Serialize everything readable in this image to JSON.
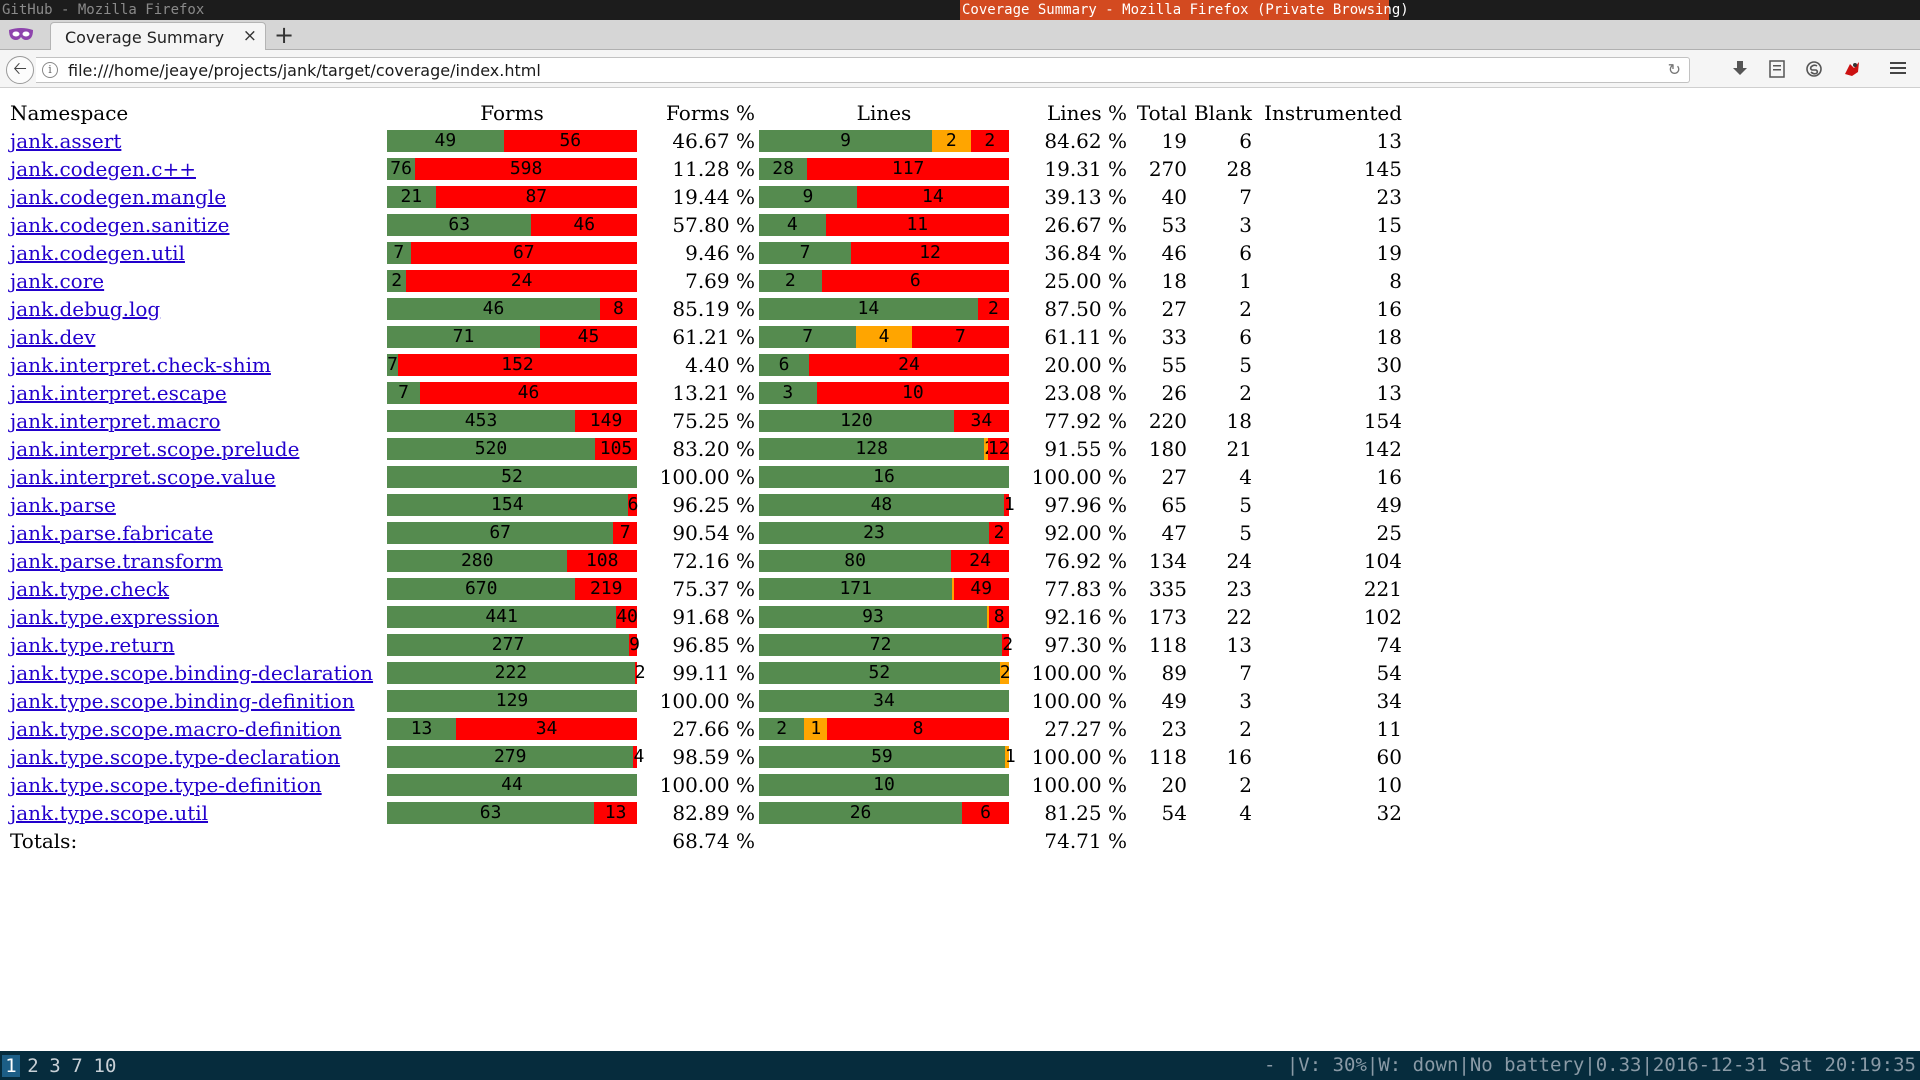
{
  "window": {
    "inactive_title": "GitHub - Mozilla Firefox",
    "active_title": "Coverage Summary - Mozilla Firefox (Private Browsing)"
  },
  "tab": {
    "title": "Coverage Summary",
    "close": "×",
    "new_tab": "+"
  },
  "nav": {
    "url": "file:///home/jeaye/projects/jank/target/coverage/index.html"
  },
  "icons": {
    "private_browsing": "mask-icon",
    "back": "back-arrow-icon",
    "info": "info-icon",
    "reload": "reload-icon",
    "download": "download-icon",
    "reader": "reader-icon",
    "sync": "sync-icon",
    "extension": "extension-icon",
    "menu": "hamburger-menu-icon"
  },
  "colors": {
    "covered": "#558b4f",
    "partial": "#ffa500",
    "uncovered": "#ff0000",
    "link": "#2200cc"
  },
  "table": {
    "headers": {
      "namespace": "Namespace",
      "forms": "Forms",
      "forms_pct": "Forms %",
      "lines": "Lines",
      "lines_pct": "Lines %",
      "total": "Total",
      "blank": "Blank",
      "instrumented": "Instrumented"
    },
    "rows": [
      {
        "ns": "jank.assert",
        "forms": [
          49,
          56
        ],
        "forms_pct": "46.67 %",
        "lines": [
          9,
          2,
          2
        ],
        "lines_pct": "84.62 %",
        "total": "19",
        "blank": "6",
        "instrumented": "13"
      },
      {
        "ns": "jank.codegen.c++",
        "forms": [
          76,
          598
        ],
        "forms_pct": "11.28 %",
        "lines": [
          28,
          0,
          117
        ],
        "lines_pct": "19.31 %",
        "total": "270",
        "blank": "28",
        "instrumented": "145"
      },
      {
        "ns": "jank.codegen.mangle",
        "forms": [
          21,
          87
        ],
        "forms_pct": "19.44 %",
        "lines": [
          9,
          0,
          14
        ],
        "lines_pct": "39.13 %",
        "total": "40",
        "blank": "7",
        "instrumented": "23"
      },
      {
        "ns": "jank.codegen.sanitize",
        "forms": [
          63,
          46
        ],
        "forms_pct": "57.80 %",
        "lines": [
          4,
          0,
          11
        ],
        "lines_pct": "26.67 %",
        "total": "53",
        "blank": "3",
        "instrumented": "15"
      },
      {
        "ns": "jank.codegen.util",
        "forms": [
          7,
          67
        ],
        "forms_pct": "9.46 %",
        "lines": [
          7,
          0,
          12
        ],
        "lines_pct": "36.84 %",
        "total": "46",
        "blank": "6",
        "instrumented": "19"
      },
      {
        "ns": "jank.core",
        "forms": [
          2,
          24
        ],
        "forms_pct": "7.69 %",
        "lines": [
          2,
          0,
          6
        ],
        "lines_pct": "25.00 %",
        "total": "18",
        "blank": "1",
        "instrumented": "8"
      },
      {
        "ns": "jank.debug.log",
        "forms": [
          46,
          8
        ],
        "forms_pct": "85.19 %",
        "lines": [
          14,
          0,
          2
        ],
        "lines_pct": "87.50 %",
        "total": "27",
        "blank": "2",
        "instrumented": "16"
      },
      {
        "ns": "jank.dev",
        "forms": [
          71,
          45
        ],
        "forms_pct": "61.21 %",
        "lines": [
          7,
          4,
          7
        ],
        "lines_pct": "61.11 %",
        "total": "33",
        "blank": "6",
        "instrumented": "18"
      },
      {
        "ns": "jank.interpret.check-shim",
        "forms": [
          7,
          152
        ],
        "forms_pct": "4.40 %",
        "lines": [
          6,
          0,
          24
        ],
        "lines_pct": "20.00 %",
        "total": "55",
        "blank": "5",
        "instrumented": "30"
      },
      {
        "ns": "jank.interpret.escape",
        "forms": [
          7,
          46
        ],
        "forms_pct": "13.21 %",
        "lines": [
          3,
          0,
          10
        ],
        "lines_pct": "23.08 %",
        "total": "26",
        "blank": "2",
        "instrumented": "13"
      },
      {
        "ns": "jank.interpret.macro",
        "forms": [
          453,
          149
        ],
        "forms_pct": "75.25 %",
        "lines": [
          120,
          0,
          34
        ],
        "lines_pct": "77.92 %",
        "total": "220",
        "blank": "18",
        "instrumented": "154"
      },
      {
        "ns": "jank.interpret.scope.prelude",
        "forms": [
          520,
          105
        ],
        "forms_pct": "83.20 %",
        "lines": [
          128,
          2,
          12
        ],
        "lines_pct": "91.55 %",
        "total": "180",
        "blank": "21",
        "instrumented": "142"
      },
      {
        "ns": "jank.interpret.scope.value",
        "forms": [
          52,
          0
        ],
        "forms_pct": "100.00 %",
        "lines": [
          16,
          0,
          0
        ],
        "lines_pct": "100.00 %",
        "total": "27",
        "blank": "4",
        "instrumented": "16"
      },
      {
        "ns": "jank.parse",
        "forms": [
          154,
          6
        ],
        "forms_pct": "96.25 %",
        "lines": [
          48,
          0,
          1
        ],
        "lines_pct": "97.96 %",
        "total": "65",
        "blank": "5",
        "instrumented": "49"
      },
      {
        "ns": "jank.parse.fabricate",
        "forms": [
          67,
          7
        ],
        "forms_pct": "90.54 %",
        "lines": [
          23,
          0,
          2
        ],
        "lines_pct": "92.00 %",
        "total": "47",
        "blank": "5",
        "instrumented": "25"
      },
      {
        "ns": "jank.parse.transform",
        "forms": [
          280,
          108
        ],
        "forms_pct": "72.16 %",
        "lines": [
          80,
          0,
          24
        ],
        "lines_pct": "76.92 %",
        "total": "134",
        "blank": "24",
        "instrumented": "104"
      },
      {
        "ns": "jank.type.check",
        "forms": [
          670,
          219
        ],
        "forms_pct": "75.37 %",
        "lines": [
          171,
          1,
          49
        ],
        "lines_pct": "77.83 %",
        "total": "335",
        "blank": "23",
        "instrumented": "221"
      },
      {
        "ns": "jank.type.expression",
        "forms": [
          441,
          40
        ],
        "forms_pct": "91.68 %",
        "lines": [
          93,
          1,
          8
        ],
        "lines_pct": "92.16 %",
        "total": "173",
        "blank": "22",
        "instrumented": "102"
      },
      {
        "ns": "jank.type.return",
        "forms": [
          277,
          9
        ],
        "forms_pct": "96.85 %",
        "lines": [
          72,
          0,
          2
        ],
        "lines_pct": "97.30 %",
        "total": "118",
        "blank": "13",
        "instrumented": "74"
      },
      {
        "ns": "jank.type.scope.binding-declaration",
        "forms": [
          222,
          2
        ],
        "forms_pct": "99.11 %",
        "lines": [
          52,
          2,
          0
        ],
        "lines_pct": "100.00 %",
        "total": "89",
        "blank": "7",
        "instrumented": "54"
      },
      {
        "ns": "jank.type.scope.binding-definition",
        "forms": [
          129,
          0
        ],
        "forms_pct": "100.00 %",
        "lines": [
          34,
          0,
          0
        ],
        "lines_pct": "100.00 %",
        "total": "49",
        "blank": "3",
        "instrumented": "34"
      },
      {
        "ns": "jank.type.scope.macro-definition",
        "forms": [
          13,
          34
        ],
        "forms_pct": "27.66 %",
        "lines": [
          2,
          1,
          8
        ],
        "lines_pct": "27.27 %",
        "total": "23",
        "blank": "2",
        "instrumented": "11"
      },
      {
        "ns": "jank.type.scope.type-declaration",
        "forms": [
          279,
          4
        ],
        "forms_pct": "98.59 %",
        "lines": [
          59,
          1,
          0
        ],
        "lines_pct": "100.00 %",
        "total": "118",
        "blank": "16",
        "instrumented": "60"
      },
      {
        "ns": "jank.type.scope.type-definition",
        "forms": [
          44,
          0
        ],
        "forms_pct": "100.00 %",
        "lines": [
          10,
          0,
          0
        ],
        "lines_pct": "100.00 %",
        "total": "20",
        "blank": "2",
        "instrumented": "10"
      },
      {
        "ns": "jank.type.scope.util",
        "forms": [
          63,
          13
        ],
        "forms_pct": "82.89 %",
        "lines": [
          26,
          0,
          6
        ],
        "lines_pct": "81.25 %",
        "total": "54",
        "blank": "4",
        "instrumented": "32"
      }
    ],
    "totals": {
      "label": "Totals:",
      "forms_pct": "68.74 %",
      "lines_pct": "74.71 %"
    }
  },
  "statusbar": {
    "workspaces": [
      "1",
      "2",
      "3",
      "7",
      "10"
    ],
    "active_workspace": "1",
    "right_text": "- |V: 30%|W: down|No battery|0.33|2016-12-31 Sat 20:19:35"
  }
}
